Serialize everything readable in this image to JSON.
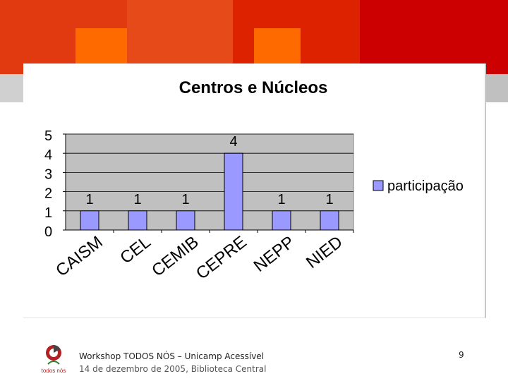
{
  "chart_data": {
    "type": "bar",
    "title": "Centros e Núcleos",
    "categories": [
      "CAISM",
      "CEL",
      "CEMIB",
      "CEPRE",
      "NEPP",
      "NIED"
    ],
    "series": [
      {
        "name": "participação",
        "values": [
          1,
          1,
          1,
          4,
          1,
          1
        ]
      }
    ],
    "ylim": [
      0,
      5
    ],
    "yticks": [
      "0",
      "1",
      "2",
      "3",
      "4",
      "5"
    ],
    "data_labels": [
      "1",
      "1",
      "1",
      "4",
      "1",
      "1"
    ],
    "grid": true,
    "legend": "right",
    "bar_color": "#9999ff",
    "plot_bg": "#c0c0c0"
  },
  "footer": {
    "line1": "Workshop TODOS NÓS – Unicamp Acessível",
    "line2": "14 de dezembro de 2005, Biblioteca Central",
    "page_number": "9",
    "logo_text": "todos nós"
  },
  "colors": {
    "banner_red": "#cc0000",
    "banner_orange": "#e03000",
    "banner_light_orange": "#ff6600",
    "banner_grey": "#c8c8c8"
  }
}
